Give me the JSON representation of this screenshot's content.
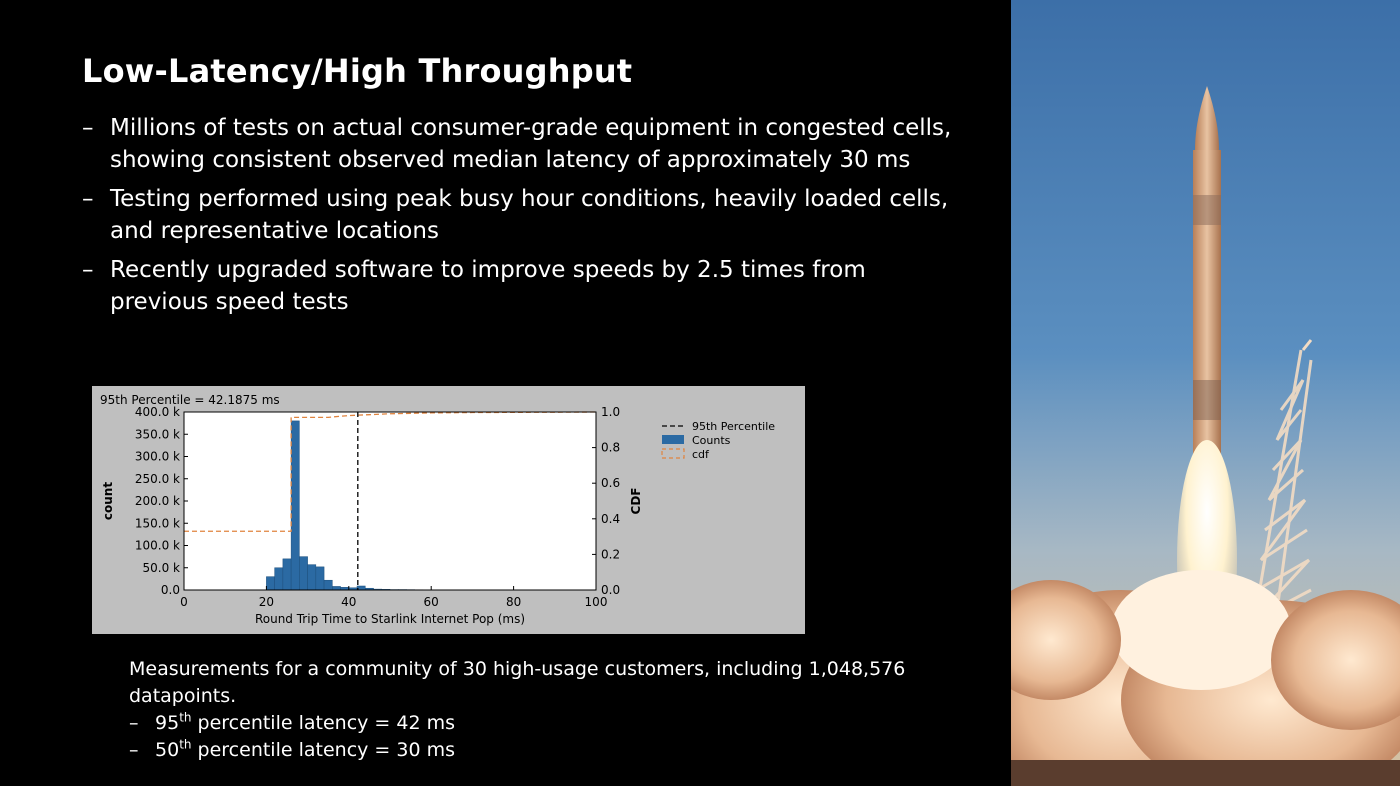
{
  "slide": {
    "title": "Low-Latency/High Throughput",
    "bullets": [
      "Millions of tests on actual consumer-grade equipment in congested cells, showing consistent observed median latency of approximately 30 ms",
      "Testing performed using peak busy hour conditions, heavily loaded cells, and representative locations",
      "Recently upgraded software to improve speeds by 2.5 times from previous speed tests"
    ],
    "dash": "–"
  },
  "caption": {
    "text": "Measurements for a community of 30 high-usage customers, including 1,048,576 datapoints.",
    "p95": {
      "ordinal": "95",
      "suffix": "th",
      "rest": " percentile latency = 42 ms"
    },
    "p50": {
      "ordinal": "50",
      "suffix": "th",
      "rest": " percentile latency = 30 ms"
    }
  },
  "chart_data": {
    "type": "bar",
    "annotation": "95th Percentile =  42.1875 ms",
    "xlabel": "Round Trip Time to Starlink Internet Pop (ms)",
    "ylabel": "count",
    "y2label": "CDF",
    "xlim": [
      0,
      100
    ],
    "ylim": [
      0,
      400000
    ],
    "y2lim": [
      0,
      1.0
    ],
    "x_ticks": [
      "0",
      "20",
      "40",
      "60",
      "80",
      "100"
    ],
    "y_ticks": [
      "0.0",
      "50.0 k",
      "100.0 k",
      "150.0 k",
      "200.0 k",
      "250.0 k",
      "300.0 k",
      "350.0 k",
      "400.0 k"
    ],
    "y2_ticks": [
      "0.0",
      "0.2",
      "0.4",
      "0.6",
      "0.8",
      "1.0"
    ],
    "bin_width": 2,
    "bins": [
      {
        "x": 20,
        "count": 30000
      },
      {
        "x": 22,
        "count": 50000
      },
      {
        "x": 24,
        "count": 70000
      },
      {
        "x": 26,
        "count": 380000
      },
      {
        "x": 28,
        "count": 75000
      },
      {
        "x": 30,
        "count": 57000
      },
      {
        "x": 32,
        "count": 52000
      },
      {
        "x": 34,
        "count": 22000
      },
      {
        "x": 36,
        "count": 8000
      },
      {
        "x": 38,
        "count": 6000
      },
      {
        "x": 40,
        "count": 5000
      },
      {
        "x": 42,
        "count": 9000
      },
      {
        "x": 44,
        "count": 4000
      },
      {
        "x": 46,
        "count": 2000
      },
      {
        "x": 48,
        "count": 1500
      },
      {
        "x": 50,
        "count": 1000
      },
      {
        "x": 52,
        "count": 1000
      },
      {
        "x": 54,
        "count": 800
      },
      {
        "x": 56,
        "count": 600
      },
      {
        "x": 58,
        "count": 500
      }
    ],
    "percentile_95": 42.1875,
    "cdf": {
      "x": [
        0,
        20,
        26,
        26,
        28,
        35,
        40,
        45,
        50,
        60,
        70,
        80,
        90,
        100
      ],
      "y": [
        0.33,
        0.33,
        0.33,
        0.97,
        0.97,
        0.97,
        0.98,
        0.985,
        0.99,
        0.995,
        0.997,
        0.998,
        0.999,
        1.0
      ]
    },
    "legend": [
      "95th Percentile",
      "Counts",
      "cdf"
    ],
    "legend_position": "right, outside plot",
    "colors": {
      "bars": "#2b6aa3",
      "cdf": "#e0843f",
      "percentile": "#000000",
      "plot_bg": "#ffffff",
      "figure_bg": "#bfbfbf"
    }
  }
}
